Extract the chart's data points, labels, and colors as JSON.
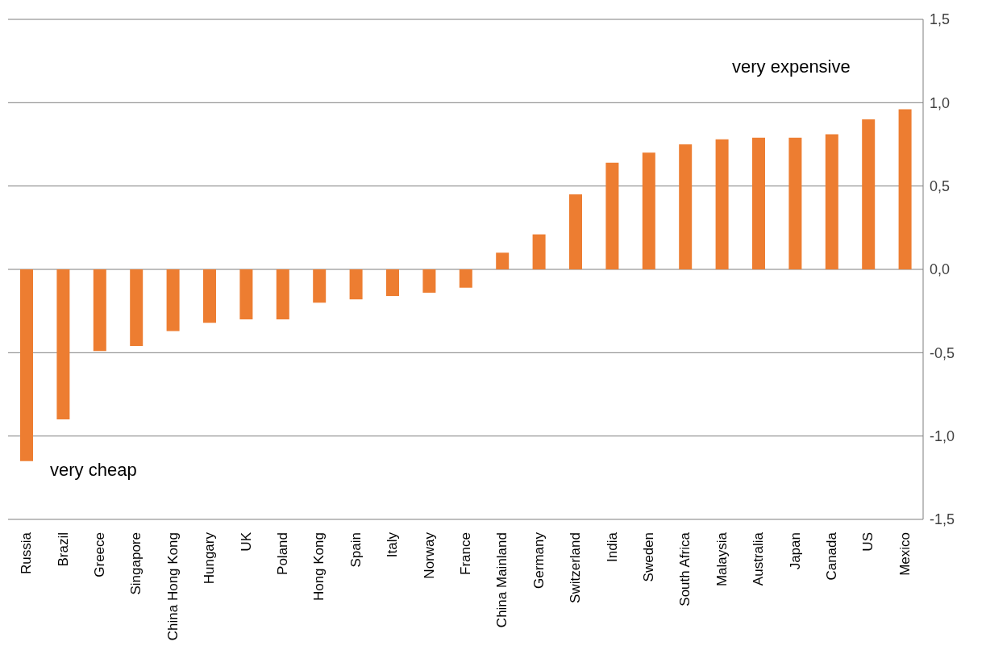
{
  "chart_data": {
    "type": "bar",
    "categories": [
      "Russia",
      "Brazil",
      "Greece",
      "Singapore",
      "China Hong Kong",
      "Hungary",
      "UK",
      "Poland",
      "Hong Kong",
      "Spain",
      "Italy",
      "Norway",
      "France",
      "China Mainland",
      "Germany",
      "Switzerland",
      "India",
      "Sweden",
      "South Africa",
      "Malaysia",
      "Australia",
      "Japan",
      "Canada",
      "US",
      "Mexico"
    ],
    "values": [
      -1.15,
      -0.9,
      -0.49,
      -0.46,
      -0.37,
      -0.32,
      -0.3,
      -0.3,
      -0.2,
      -0.18,
      -0.16,
      -0.14,
      -0.11,
      0.1,
      0.21,
      0.45,
      0.64,
      0.7,
      0.75,
      0.78,
      0.79,
      0.79,
      0.81,
      0.9,
      0.96
    ],
    "color": "#ed7d31",
    "ylim": [
      -1.5,
      1.5
    ],
    "yticks": [
      {
        "value": -1.5,
        "label": "-1,5"
      },
      {
        "value": -1,
        "label": "-1,0"
      },
      {
        "value": -0.5,
        "label": "-0,5"
      },
      {
        "value": 0,
        "label": "0,0"
      },
      {
        "value": 0.5,
        "label": "0,5"
      },
      {
        "value": 1,
        "label": "1,0"
      },
      {
        "value": 1.5,
        "label": "1,5"
      }
    ],
    "grid": "y",
    "legend": false,
    "annotations": [
      "very expensive",
      "very cheap"
    ]
  }
}
